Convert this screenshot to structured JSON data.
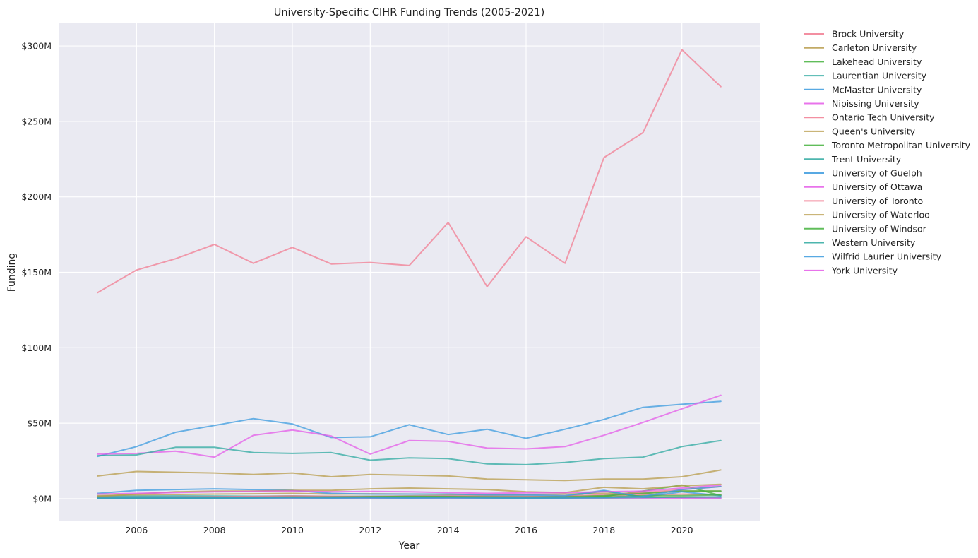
{
  "chart_data": {
    "type": "line",
    "title": "University-Specific CIHR Funding Trends (2005-2021)",
    "xlabel": "Year",
    "ylabel": "Funding",
    "xlim": [
      2004,
      2022
    ],
    "ylim": [
      -15,
      315
    ],
    "xticks": [
      2006,
      2008,
      2010,
      2012,
      2014,
      2016,
      2018,
      2020
    ],
    "yticks": [
      0,
      50,
      100,
      150,
      200,
      250,
      300
    ],
    "ytick_labels": [
      "$0M",
      "$50M",
      "$100M",
      "$150M",
      "$200M",
      "$250M",
      "$300M"
    ],
    "grid": true,
    "legend_position": "outside-right",
    "x": [
      2005,
      2006,
      2007,
      2008,
      2009,
      2010,
      2011,
      2012,
      2013,
      2014,
      2015,
      2016,
      2017,
      2018,
      2019,
      2020,
      2021
    ],
    "series": [
      {
        "name": "Brock University",
        "color": "#f17c91",
        "values": [
          1.0,
          1.2,
          1.1,
          1.3,
          1.2,
          1.4,
          1.3,
          1.5,
          1.4,
          1.3,
          1.2,
          1.4,
          1.5,
          1.8,
          2.5,
          3.0,
          2.5
        ]
      },
      {
        "name": "Carleton University",
        "color": "#b89c4b",
        "values": [
          2.0,
          2.5,
          2.8,
          3.0,
          3.2,
          3.5,
          3.0,
          3.2,
          3.0,
          2.8,
          2.5,
          2.8,
          3.0,
          3.5,
          3.5,
          5.0,
          5.0
        ]
      },
      {
        "name": "Lakehead University",
        "color": "#45b23e",
        "values": [
          0.5,
          0.6,
          0.7,
          0.6,
          0.8,
          0.9,
          0.8,
          0.7,
          0.9,
          1.0,
          0.8,
          0.7,
          0.6,
          1.5,
          5.0,
          9.0,
          2.0
        ]
      },
      {
        "name": "Laurentian University",
        "color": "#2eaaa0",
        "values": [
          1.5,
          1.6,
          1.8,
          1.7,
          1.6,
          1.8,
          1.5,
          1.6,
          1.7,
          1.8,
          1.5,
          1.6,
          1.5,
          5.0,
          1.0,
          0.8,
          0.6
        ]
      },
      {
        "name": "McMaster University",
        "color": "#3b9bdf",
        "values": [
          28.0,
          34.5,
          44.0,
          48.5,
          53.0,
          49.5,
          40.5,
          41.0,
          49.0,
          42.5,
          46.0,
          40.0,
          46.0,
          52.5,
          60.5,
          62.5,
          64.5
        ]
      },
      {
        "name": "Nipissing University",
        "color": "#e45be8",
        "values": [
          0.3,
          0.3,
          0.4,
          0.3,
          0.4,
          0.3,
          0.3,
          0.4,
          0.3,
          0.3,
          0.4,
          0.3,
          0.3,
          0.4,
          0.3,
          0.4,
          0.3
        ]
      },
      {
        "name": "Ontario Tech University",
        "color": "#f17c91",
        "values": [
          0.5,
          0.8,
          1.0,
          1.2,
          1.5,
          1.8,
          1.6,
          1.5,
          1.7,
          1.8,
          1.6,
          1.5,
          1.8,
          2.5,
          4.0,
          6.0,
          8.0
        ]
      },
      {
        "name": "Queen's University",
        "color": "#b89c4b",
        "values": [
          15.0,
          18.0,
          17.5,
          17.0,
          16.0,
          17.0,
          14.5,
          16.0,
          15.5,
          15.0,
          13.0,
          12.5,
          12.0,
          13.0,
          13.0,
          14.5,
          19.0
        ]
      },
      {
        "name": "Toronto Metropolitan University",
        "color": "#45b23e",
        "values": [
          0.2,
          0.3,
          0.4,
          0.5,
          0.6,
          0.8,
          1.0,
          1.2,
          1.5,
          1.4,
          1.2,
          1.0,
          1.2,
          2.0,
          3.5,
          5.0,
          5.0
        ]
      },
      {
        "name": "Trent University",
        "color": "#2eaaa0",
        "values": [
          0.3,
          0.4,
          0.5,
          0.4,
          0.5,
          0.6,
          0.5,
          0.6,
          0.5,
          0.6,
          0.5,
          0.4,
          0.5,
          0.6,
          0.8,
          1.0,
          1.2
        ]
      },
      {
        "name": "University of Guelph",
        "color": "#3b9bdf",
        "values": [
          3.5,
          5.5,
          6.0,
          6.5,
          6.0,
          5.5,
          3.5,
          3.0,
          3.0,
          3.0,
          2.5,
          2.5,
          2.0,
          5.5,
          1.0,
          4.5,
          2.0
        ]
      },
      {
        "name": "University of Ottawa",
        "color": "#e45be8",
        "values": [
          29.5,
          30.0,
          31.5,
          27.5,
          42.0,
          45.5,
          41.5,
          29.5,
          38.5,
          38.0,
          33.5,
          33.0,
          34.5,
          42.0,
          50.5,
          59.5,
          68.5
        ]
      },
      {
        "name": "University of Toronto",
        "color": "#f17c91",
        "values": [
          136.5,
          151.5,
          159.0,
          168.5,
          156.0,
          166.5,
          155.5,
          156.5,
          154.5,
          183.0,
          140.5,
          173.5,
          156.0,
          226.0,
          242.5,
          297.5,
          273.0
        ]
      },
      {
        "name": "University of Waterloo",
        "color": "#b89c4b",
        "values": [
          1.5,
          3.0,
          4.5,
          5.0,
          5.0,
          5.5,
          5.5,
          6.5,
          7.0,
          6.5,
          6.0,
          4.5,
          4.0,
          7.5,
          6.5,
          8.5,
          9.5
        ]
      },
      {
        "name": "University of Windsor",
        "color": "#45b23e",
        "values": [
          0.5,
          0.5,
          0.6,
          0.7,
          0.8,
          1.0,
          1.0,
          1.2,
          1.1,
          1.0,
          0.8,
          0.7,
          0.8,
          1.0,
          2.0,
          2.0,
          2.5
        ]
      },
      {
        "name": "Western University",
        "color": "#2eaaa0",
        "values": [
          28.5,
          29.0,
          34.0,
          34.0,
          30.5,
          30.0,
          30.5,
          25.5,
          27.0,
          26.5,
          23.0,
          22.5,
          24.0,
          26.5,
          27.5,
          34.5,
          38.5
        ]
      },
      {
        "name": "Wilfrid Laurier University",
        "color": "#3b9bdf",
        "values": [
          0.4,
          0.5,
          0.5,
          0.6,
          0.6,
          0.7,
          0.6,
          0.7,
          0.6,
          0.7,
          0.6,
          0.5,
          0.6,
          0.8,
          1.5,
          6.0,
          8.0
        ]
      },
      {
        "name": "York University",
        "color": "#e45be8",
        "values": [
          3.0,
          3.5,
          4.0,
          4.5,
          4.8,
          5.0,
          4.5,
          4.8,
          4.5,
          4.0,
          3.5,
          3.8,
          4.0,
          4.5,
          5.0,
          7.0,
          9.0
        ]
      }
    ]
  }
}
